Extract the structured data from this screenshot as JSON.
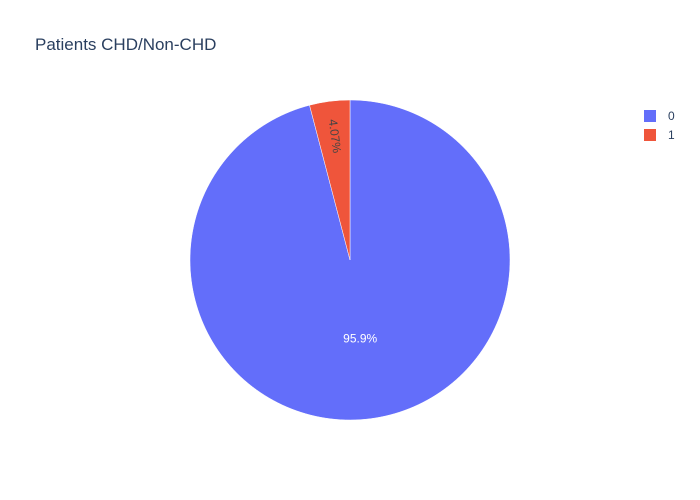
{
  "chart_data": {
    "type": "pie",
    "title": "Patients CHD/Non-CHD",
    "categories": [
      "0",
      "1"
    ],
    "values": [
      95.93,
      4.07
    ],
    "slice_labels": [
      "95.9%",
      "4.07%"
    ],
    "colors": [
      "#636efa",
      "#ef553b"
    ],
    "legend": {
      "placement": "top-right",
      "entries": [
        {
          "label": "0",
          "color": "#636efa"
        },
        {
          "label": "1",
          "color": "#ef553b"
        }
      ]
    }
  }
}
